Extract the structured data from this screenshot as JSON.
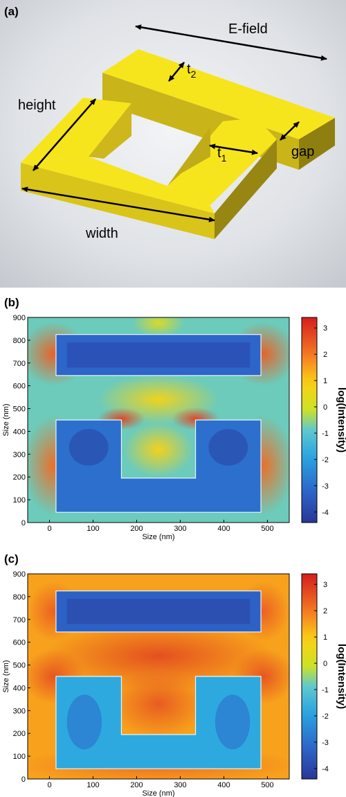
{
  "panel_a": {
    "label": "(a)",
    "labels": {
      "efield": "E-field",
      "t2": "t",
      "t2_sub": "2",
      "t1": "t",
      "t1_sub": "1",
      "height": "height",
      "gap": "gap",
      "width": "width"
    },
    "colors": {
      "metal_top": "#f5e31a",
      "metal_side": "#c7b21a",
      "metal_dark": "#8f7f10",
      "background": "#d8dbe0"
    }
  },
  "chart_data": [
    {
      "type": "heatmap",
      "panel": "(b)",
      "xlabel": "Size (nm)",
      "ylabel": "Size (nm)",
      "xlim": [
        -50,
        550
      ],
      "ylim": [
        0,
        900
      ],
      "xticks": [
        "0",
        "100",
        "200",
        "300",
        "400",
        "500"
      ],
      "yticks": [
        "0",
        "100",
        "200",
        "300",
        "400",
        "500",
        "600",
        "700",
        "800",
        "900"
      ],
      "colorbar": {
        "label": "log(Intensity)",
        "range": [
          -4.4,
          3.4
        ],
        "ticks": [
          "3",
          "2",
          "1",
          "0",
          "-1",
          "-2",
          "-3",
          "-4"
        ]
      },
      "structures": [
        {
          "name": "top bar",
          "x": [
            15,
            485
          ],
          "y": [
            645,
            825
          ],
          "log_intensity_inside": -3.2
        },
        {
          "name": "U",
          "x": [
            15,
            485
          ],
          "y": [
            45,
            450
          ],
          "inner_x": [
            165,
            335
          ],
          "inner_y": [
            195,
            450
          ],
          "log_intensity_inside": -3.0
        }
      ],
      "field_outside": {
        "near_corners": 2.8,
        "gap_region": 0.6,
        "background": -0.8
      }
    },
    {
      "type": "heatmap",
      "panel": "(c)",
      "xlabel": "Size (nm)",
      "ylabel": "Size (nm)",
      "xlim": [
        -50,
        550
      ],
      "ylim": [
        0,
        900
      ],
      "xticks": [
        "0",
        "100",
        "200",
        "300",
        "400",
        "500"
      ],
      "yticks": [
        "0",
        "100",
        "200",
        "300",
        "400",
        "500",
        "600",
        "700",
        "800",
        "900"
      ],
      "colorbar": {
        "label": "log(Intensity)",
        "range": [
          -4.4,
          3.4
        ],
        "ticks": [
          "3",
          "2",
          "1",
          "0",
          "-1",
          "-2",
          "-3",
          "-4"
        ]
      },
      "structures": [
        {
          "name": "top bar",
          "x": [
            15,
            485
          ],
          "y": [
            645,
            825
          ],
          "log_intensity_inside": -3.3
        },
        {
          "name": "U",
          "x": [
            15,
            485
          ],
          "y": [
            45,
            450
          ],
          "inner_x": [
            165,
            335
          ],
          "inner_y": [
            195,
            450
          ],
          "log_intensity_inside": -1.8
        }
      ],
      "field_outside": {
        "gap_region": 2.6,
        "inner_cavity": 2.3,
        "background": 1.5
      }
    }
  ]
}
